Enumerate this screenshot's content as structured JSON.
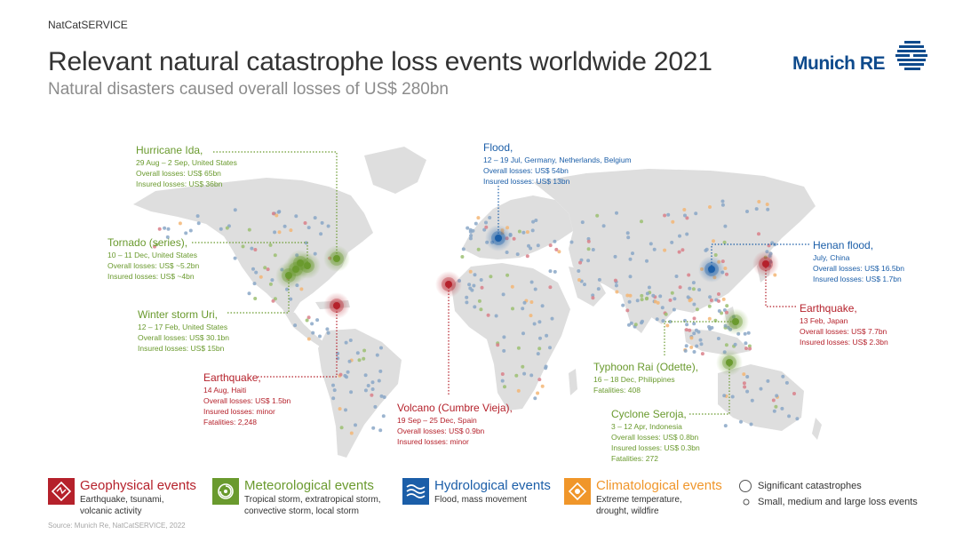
{
  "header": {
    "top_label": "NatCatSERVICE",
    "title": "Relevant natural catastrophe loss events worldwide 2021",
    "subtitle": "Natural disasters caused overall losses of US$ 280bn",
    "logo_text": "Munich RE"
  },
  "colors": {
    "geophysical": "#b5212b",
    "meteorological": "#6a9a2e",
    "hydrological": "#1b5ea8",
    "climatological": "#f0962a",
    "land": "#dedede",
    "small_dot": "#8aa7c7"
  },
  "events": [
    {
      "id": "hurricane-ida",
      "category": "meteorological",
      "title": "Hurricane Ida,",
      "lines": [
        "29 Aug – 2 Sep, United States",
        "Overall losses: US$ 65bn",
        "Insured losses: US$ 36bn"
      ]
    },
    {
      "id": "tornado",
      "category": "meteorological",
      "title": "Tornado (series),",
      "lines": [
        "10 – 11 Dec, United States",
        "Overall losses: US$ ~5.2bn",
        "Insured losses: US$ ~4bn"
      ]
    },
    {
      "id": "winter-storm-uri",
      "category": "meteorological",
      "title": "Winter storm Uri,",
      "lines": [
        "12 – 17 Feb, United States",
        "Overall losses: US$ 30.1bn",
        "Insured losses: US$ 15bn"
      ]
    },
    {
      "id": "earthquake-haiti",
      "category": "geophysical",
      "title": "Earthquake,",
      "lines": [
        "14 Aug, Haiti",
        "Overall losses: US$ 1.5bn",
        "Insured losses: minor",
        "Fatalities: 2,248"
      ]
    },
    {
      "id": "flood-europe",
      "category": "hydrological",
      "title": "Flood,",
      "lines": [
        "12 – 19 Jul, Germany, Netherlands, Belgium",
        "Overall losses: US$ 54bn",
        "Insured losses: US$ 13bn"
      ]
    },
    {
      "id": "volcano",
      "category": "geophysical",
      "title": "Volcano (Cumbre Vieja),",
      "lines": [
        "19 Sep – 25 Dec, Spain",
        "Overall losses: US$ 0.9bn",
        "Insured losses: minor"
      ]
    },
    {
      "id": "henan-flood",
      "category": "hydrological",
      "title": "Henan flood,",
      "lines": [
        "July, China",
        "Overall losses: US$ 16.5bn",
        "Insured losses: US$ 1.7bn"
      ]
    },
    {
      "id": "earthquake-japan",
      "category": "geophysical",
      "title": "Earthquake,",
      "lines": [
        "13 Feb, Japan",
        "Overall losses: US$ 7.7bn",
        "Insured losses: US$ 2.3bn"
      ]
    },
    {
      "id": "typhoon-rai",
      "category": "meteorological",
      "title": "Typhoon Rai (Odette),",
      "lines": [
        "16 – 18 Dec, Philippines",
        "Fatalities: 408"
      ]
    },
    {
      "id": "cyclone-seroja",
      "category": "meteorological",
      "title": "Cyclone Seroja,",
      "lines": [
        "3 – 12 Apr, Indonesia",
        "Overall losses: US$ 0.8bn",
        "Insured losses: US$ 0.3bn",
        "Fatalities: 272"
      ]
    }
  ],
  "legend": {
    "geophysical": {
      "title": "Geophysical events",
      "desc": [
        "Earthquake, tsunami,",
        "volcanic activity"
      ]
    },
    "meteorological": {
      "title": "Meteorological events",
      "desc": [
        "Tropical storm, extratropical storm,",
        "convective storm, local storm"
      ]
    },
    "hydrological": {
      "title": "Hydrological events",
      "desc": [
        "Flood, mass movement"
      ]
    },
    "climatological": {
      "title": "Climatological events",
      "desc": [
        "Extreme temperature,",
        "drought, wildfire"
      ]
    },
    "significant": "Significant catastrophes",
    "small": "Small, medium and large loss events"
  },
  "source": "Source: Munich Re, NatCatSERVICE, 2022"
}
